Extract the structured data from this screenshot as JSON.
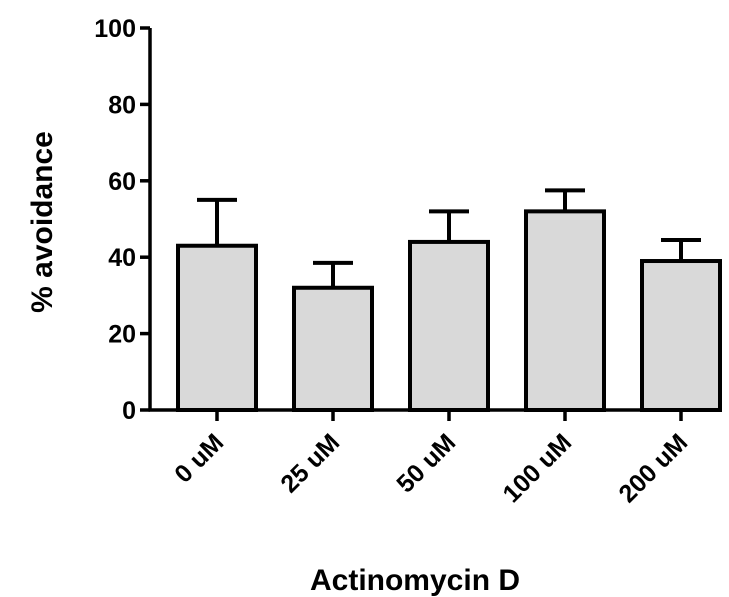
{
  "chart_data": {
    "type": "bar",
    "title": "",
    "xlabel": "Actinomycin D",
    "ylabel": "% avoidance",
    "categories": [
      "0 uM",
      "25 uM",
      "50 uM",
      "100 uM",
      "200 uM"
    ],
    "values": [
      43,
      32,
      44,
      52,
      39
    ],
    "error_upper": [
      55,
      38.5,
      52,
      57.5,
      44.5
    ],
    "ylim": [
      0,
      100
    ],
    "yticks": [
      0,
      20,
      40,
      60,
      80,
      100
    ],
    "ytick_labels": [
      "0",
      "20",
      "40",
      "60",
      "80",
      "100"
    ],
    "grid": false,
    "legend": "none",
    "bar_color": "#d9d9d9",
    "edge_color": "#000000"
  }
}
